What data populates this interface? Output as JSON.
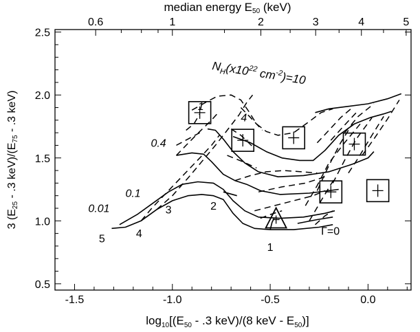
{
  "chart_data": {
    "type": "line",
    "title": "",
    "xlabel": {
      "pre": "log",
      "sub1": "10",
      "mid1": "[(E",
      "sub2": "50",
      "mid2": " - .3 keV)/(8 keV - E",
      "sub3": "50",
      "post": ")]"
    },
    "ylabel": {
      "pre": "3 (E",
      "sub1": "25",
      "mid": " - .3 keV)/(E",
      "sub2": "75",
      "post": " - .3 keV)"
    },
    "top_label": {
      "pre": "median energy E",
      "sub": "50",
      "post": " (keV)"
    },
    "xlim": [
      -1.6,
      0.22
    ],
    "ylim": [
      0.45,
      2.52
    ],
    "x_ticks": [
      {
        "value": -1.5,
        "label": "-1.5"
      },
      {
        "value": -1.0,
        "label": "-1.0"
      },
      {
        "value": -0.5,
        "label": "-0.5"
      },
      {
        "value": 0.0,
        "label": "0.0"
      }
    ],
    "y_ticks": [
      {
        "value": 0.5,
        "label": "0.5"
      },
      {
        "value": 1.0,
        "label": "1.0"
      },
      {
        "value": 1.5,
        "label": "1.5"
      },
      {
        "value": 2.0,
        "label": "2.0"
      },
      {
        "value": 2.5,
        "label": "2.5"
      }
    ],
    "top_ticks": [
      {
        "energy": 0.6,
        "label": "0.6"
      },
      {
        "energy": 1,
        "label": "1"
      },
      {
        "energy": 2,
        "label": "2"
      },
      {
        "energy": 3,
        "label": "3"
      },
      {
        "energy": 4,
        "label": "4"
      },
      {
        "energy": 5,
        "label": "5"
      }
    ],
    "solid_curves": [
      [
        [
          -1.31,
          0.94
        ],
        [
          -1.24,
          0.95
        ],
        [
          -1.16,
          1.0
        ],
        [
          -1.08,
          1.09
        ],
        [
          -1.0,
          1.16
        ],
        [
          -0.92,
          1.2
        ],
        [
          -0.85,
          1.21
        ],
        [
          -0.79,
          1.2
        ],
        [
          -0.74,
          1.17
        ],
        [
          -0.69,
          1.06
        ],
        [
          -0.64,
          0.98
        ],
        [
          -0.58,
          0.94
        ],
        [
          -0.5,
          0.93
        ],
        [
          -0.38,
          0.93
        ],
        [
          -0.25,
          0.95
        ],
        [
          -0.18,
          0.97
        ]
      ],
      [
        [
          -1.27,
          0.97
        ],
        [
          -1.18,
          1.05
        ],
        [
          -1.1,
          1.14
        ],
        [
          -1.02,
          1.23
        ],
        [
          -0.95,
          1.29
        ],
        [
          -0.87,
          1.31
        ],
        [
          -0.79,
          1.3
        ],
        [
          -0.74,
          1.25
        ],
        [
          -0.69,
          1.16
        ],
        [
          -0.63,
          1.08
        ],
        [
          -0.56,
          1.03
        ],
        [
          -0.45,
          1.02
        ],
        [
          -0.33,
          1.03
        ],
        [
          -0.22,
          1.06
        ],
        [
          -0.17,
          1.08
        ]
      ],
      [
        [
          -0.98,
          1.52
        ],
        [
          -0.9,
          1.54
        ],
        [
          -0.84,
          1.53
        ],
        [
          -0.8,
          1.47
        ],
        [
          -0.74,
          1.37
        ],
        [
          -0.68,
          1.32
        ],
        [
          -0.62,
          1.29
        ],
        [
          -0.55,
          1.24
        ],
        [
          -0.45,
          1.21
        ],
        [
          -0.3,
          1.22
        ],
        [
          -0.15,
          1.25
        ]
      ],
      [
        [
          -0.82,
          1.73
        ],
        [
          -0.78,
          1.72
        ],
        [
          -0.74,
          1.65
        ],
        [
          -0.69,
          1.55
        ],
        [
          -0.63,
          1.46
        ],
        [
          -0.56,
          1.39
        ],
        [
          -0.46,
          1.35
        ],
        [
          -0.33,
          1.36
        ],
        [
          -0.2,
          1.39
        ],
        [
          -0.08,
          1.45
        ],
        [
          0.0,
          1.5
        ],
        [
          0.03,
          1.55
        ]
      ],
      [
        [
          -0.69,
          1.67
        ],
        [
          -0.6,
          1.62
        ],
        [
          -0.52,
          1.55
        ],
        [
          -0.44,
          1.5
        ],
        [
          -0.35,
          1.48
        ],
        [
          -0.28,
          1.48
        ],
        [
          -0.22,
          1.56
        ],
        [
          -0.15,
          1.68
        ],
        [
          -0.07,
          1.77
        ],
        [
          0.01,
          1.82
        ],
        [
          0.08,
          1.85
        ],
        [
          0.12,
          1.87
        ]
      ],
      [
        [
          -0.27,
          1.86
        ],
        [
          -0.2,
          1.89
        ],
        [
          -0.1,
          1.91
        ],
        [
          0.0,
          1.93
        ],
        [
          0.1,
          1.97
        ],
        [
          0.17,
          2.01
        ]
      ],
      [
        [
          -0.74,
          1.23
        ],
        [
          -0.67,
          1.2
        ]
      ],
      [
        [
          -0.5,
          0.93
        ],
        [
          -0.49,
          0.99
        ],
        [
          -0.48,
          1.02
        ]
      ],
      [
        [
          -0.36,
          0.98
        ],
        [
          -0.26,
          1.01
        ],
        [
          -0.18,
          1.03
        ]
      ]
    ],
    "dashed_curves": [
      [
        [
          -1.08,
          1.09
        ],
        [
          -1.0,
          1.2
        ],
        [
          -0.92,
          1.34
        ],
        [
          -0.85,
          1.47
        ],
        [
          -0.78,
          1.6
        ],
        [
          -0.72,
          1.72
        ],
        [
          -0.66,
          1.84
        ],
        [
          -0.62,
          1.94
        ],
        [
          -0.59,
          2.0
        ]
      ],
      [
        [
          -1.16,
          1.0
        ],
        [
          -1.1,
          1.11
        ],
        [
          -1.02,
          1.24
        ],
        [
          -0.94,
          1.37
        ],
        [
          -0.86,
          1.5
        ],
        [
          -0.8,
          1.6
        ],
        [
          -0.76,
          1.68
        ]
      ],
      [
        [
          -0.98,
          1.52
        ],
        [
          -0.93,
          1.6
        ],
        [
          -0.86,
          1.71
        ],
        [
          -0.8,
          1.8
        ],
        [
          -0.76,
          1.87
        ]
      ],
      [
        [
          -0.98,
          1.6
        ],
        [
          -0.92,
          1.65
        ],
        [
          -0.86,
          1.7
        ]
      ],
      [
        [
          -0.93,
          1.72
        ],
        [
          -0.89,
          1.77
        ],
        [
          -0.86,
          1.85
        ]
      ],
      [
        [
          -0.9,
          1.88
        ],
        [
          -0.82,
          1.95
        ],
        [
          -0.77,
          1.99
        ],
        [
          -0.7,
          2.0
        ],
        [
          -0.65,
          1.96
        ],
        [
          -0.61,
          1.87
        ],
        [
          -0.57,
          1.77
        ],
        [
          -0.52,
          1.71
        ],
        [
          -0.46,
          1.68
        ],
        [
          -0.38,
          1.7
        ],
        [
          -0.3,
          1.79
        ],
        [
          -0.24,
          1.86
        ],
        [
          -0.18,
          1.89
        ]
      ],
      [
        [
          -0.65,
          1.9
        ],
        [
          -0.6,
          1.82
        ],
        [
          -0.54,
          1.72
        ]
      ],
      [
        [
          -0.7,
          1.73
        ],
        [
          -0.65,
          1.68
        ],
        [
          -0.59,
          1.59
        ]
      ],
      [
        [
          -0.72,
          1.52
        ],
        [
          -0.64,
          1.47
        ],
        [
          -0.57,
          1.42
        ]
      ],
      [
        [
          -0.68,
          1.32
        ],
        [
          -0.6,
          1.36
        ],
        [
          -0.52,
          1.39
        ],
        [
          -0.43,
          1.4
        ],
        [
          -0.34,
          1.39
        ],
        [
          -0.26,
          1.38
        ]
      ],
      [
        [
          -0.56,
          1.23
        ],
        [
          -0.44,
          1.27
        ],
        [
          -0.32,
          1.3
        ],
        [
          -0.22,
          1.35
        ]
      ],
      [
        [
          -0.58,
          1.08
        ],
        [
          -0.48,
          1.12
        ],
        [
          -0.38,
          1.16
        ],
        [
          -0.28,
          1.2
        ],
        [
          -0.22,
          1.24
        ]
      ],
      [
        [
          -0.55,
          1.02
        ],
        [
          -0.5,
          1.05
        ],
        [
          -0.44,
          1.08
        ]
      ],
      [
        [
          -0.27,
          0.97
        ],
        [
          -0.22,
          1.04
        ],
        [
          -0.18,
          1.08
        ]
      ],
      [
        [
          -0.3,
          1.0
        ],
        [
          -0.24,
          1.16
        ],
        [
          -0.17,
          1.34
        ]
      ],
      [
        [
          -0.32,
          1.12
        ],
        [
          -0.26,
          1.28
        ],
        [
          -0.2,
          1.46
        ],
        [
          -0.12,
          1.62
        ],
        [
          -0.04,
          1.77
        ]
      ],
      [
        [
          -0.26,
          1.24
        ],
        [
          -0.2,
          1.44
        ],
        [
          -0.14,
          1.62
        ],
        [
          -0.08,
          1.77
        ]
      ],
      [
        [
          -0.18,
          1.3
        ],
        [
          -0.12,
          1.48
        ],
        [
          -0.06,
          1.65
        ],
        [
          0.02,
          1.82
        ]
      ],
      [
        [
          -0.1,
          1.38
        ],
        [
          -0.05,
          1.5
        ],
        [
          0.02,
          1.68
        ],
        [
          0.08,
          1.83
        ]
      ],
      [
        [
          -0.03,
          1.52
        ],
        [
          0.03,
          1.65
        ],
        [
          0.1,
          1.81
        ],
        [
          0.16,
          1.96
        ]
      ],
      [
        [
          -0.26,
          1.62
        ],
        [
          -0.2,
          1.72
        ],
        [
          -0.14,
          1.82
        ],
        [
          -0.08,
          1.9
        ]
      ],
      [
        [
          -0.19,
          1.64
        ],
        [
          -0.12,
          1.76
        ],
        [
          -0.06,
          1.86
        ]
      ],
      [
        [
          -0.12,
          1.7
        ],
        [
          -0.05,
          1.83
        ],
        [
          0.03,
          1.93
        ]
      ]
    ],
    "labels": [
      {
        "text": "0.01",
        "x": -1.43,
        "y": 1.07,
        "style": "italic",
        "anchor": "start"
      },
      {
        "text": "0.1",
        "x": -1.24,
        "y": 1.19,
        "style": "italic",
        "anchor": "start"
      },
      {
        "text": "0.4",
        "x": -1.11,
        "y": 1.59,
        "style": "italic",
        "anchor": "start"
      },
      {
        "text": "4",
        "x": -0.65,
        "y": 1.79,
        "style": "italic",
        "anchor": "start"
      },
      {
        "text": "1",
        "x": -0.87,
        "y": 1.88,
        "style": "italic",
        "anchor": "start"
      },
      {
        "text": "5",
        "x": -1.36,
        "y": 0.83,
        "style": "normal",
        "anchor": "middle"
      },
      {
        "text": "4",
        "x": -1.17,
        "y": 0.87,
        "style": "normal",
        "anchor": "middle"
      },
      {
        "text": "3",
        "x": -1.02,
        "y": 1.06,
        "style": "normal",
        "anchor": "middle"
      },
      {
        "text": "2",
        "x": -0.79,
        "y": 1.09,
        "style": "normal",
        "anchor": "middle"
      },
      {
        "text": "1",
        "x": -0.5,
        "y": 0.76,
        "style": "normal",
        "anchor": "middle"
      },
      {
        "text": "Γ=0",
        "x": -0.24,
        "y": 0.89,
        "style": "normal",
        "anchor": "start"
      }
    ],
    "nh_label": {
      "n": "N",
      "n_sub": "H",
      "mid": "(x10",
      "sup": "22",
      "unit": " cm",
      "unit_sup": "-2",
      "post": ")=10"
    },
    "square_markers": [
      {
        "x": -0.86,
        "y": 1.86
      },
      {
        "x": -0.64,
        "y": 1.64
      },
      {
        "x": -0.38,
        "y": 1.66
      },
      {
        "x": -0.19,
        "y": 1.23
      },
      {
        "x": -0.07,
        "y": 1.61
      },
      {
        "x": 0.05,
        "y": 1.24
      }
    ],
    "triangle_marker": {
      "x": -0.47,
      "y": 1.01
    }
  }
}
